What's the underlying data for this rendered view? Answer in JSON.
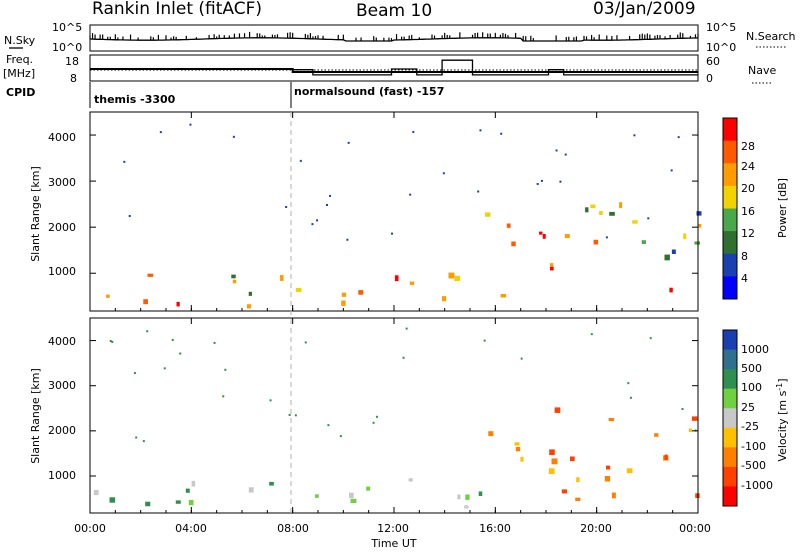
{
  "header": {
    "title": "Rankin Inlet (fitACF)",
    "beam": "Beam 10",
    "date": "03/Jan/2009"
  },
  "housekeeping": {
    "nsky_label": "N.Sky",
    "nsearch_label": "N.Search",
    "nsky_ticks": [
      "10^5",
      "10^0"
    ],
    "freq_label": "Freq.",
    "freq_unit": "[MHz]",
    "freq_ticks": [
      "18",
      "8"
    ],
    "nave_label": "Nave",
    "nave_ticks": [
      "60",
      "0"
    ],
    "cpid_label": "CPID",
    "cpid_segments": [
      {
        "label": "themis -3300",
        "start_hour": 0,
        "end_hour": 8
      },
      {
        "label": "normalsound (fast) -157",
        "start_hour": 8,
        "end_hour": 24
      }
    ],
    "nave_steps": [
      {
        "from": 0,
        "to": 8,
        "value": 30
      },
      {
        "from": 8,
        "to": 8.8,
        "value": 28
      },
      {
        "from": 8.8,
        "to": 10.1,
        "value": 14
      },
      {
        "from": 10.1,
        "to": 11.9,
        "value": 14
      },
      {
        "from": 11.9,
        "to": 12.9,
        "value": 30
      },
      {
        "from": 12.9,
        "to": 13.9,
        "value": 14
      },
      {
        "from": 13.9,
        "to": 15.1,
        "value": 54
      },
      {
        "from": 15.1,
        "to": 18.1,
        "value": 14
      },
      {
        "from": 18.1,
        "to": 18.7,
        "value": 28
      },
      {
        "from": 18.7,
        "to": 19.1,
        "value": 14
      },
      {
        "from": 19.1,
        "to": 24,
        "value": 14
      }
    ]
  },
  "chart_data": [
    {
      "type": "heatmap",
      "title": "Power",
      "ylabel": "Slant Range [km]",
      "xlabel": "Time UT",
      "x_range_hours": [
        0,
        24
      ],
      "ylim": [
        180,
        4500
      ],
      "y_ticks": [
        "1000",
        "2000",
        "3000",
        "4000"
      ],
      "x_ticks": [
        "00:00",
        "04:00",
        "08:00",
        "12:00",
        "16:00",
        "20:00",
        "00:00"
      ],
      "colorbar_label": "Power [dB]",
      "colorbar_ticks": [
        "4",
        "8",
        "12",
        "16",
        "20",
        "24",
        "28"
      ],
      "colorbar_colors": [
        "#0000ff",
        "#1a3fb0",
        "#2f6f2f",
        "#4aa84a",
        "#f2d200",
        "#ff9c00",
        "#ff5a00",
        "#ff0000"
      ],
      "regions": [
        {
          "t0": 0,
          "t1": 8,
          "r0": 250,
          "r1": 1050,
          "level": "mixed-high"
        },
        {
          "t0": 8,
          "t1": 12,
          "r0": 250,
          "r1": 900,
          "level": "mixed-high"
        },
        {
          "t0": 12,
          "t1": 17,
          "r0": 250,
          "r1": 1100,
          "level": "mixed-high"
        },
        {
          "t0": 15.5,
          "t1": 18.5,
          "r0": 1200,
          "r1": 2300,
          "level": "mixed-mid"
        },
        {
          "t0": 18,
          "t1": 24,
          "r0": 400,
          "r1": 2500,
          "level": "mixed-high"
        }
      ]
    },
    {
      "type": "heatmap",
      "title": "Velocity",
      "ylabel": "Slant Range [km]",
      "xlabel": "Time UT",
      "x_range_hours": [
        0,
        24
      ],
      "ylim": [
        180,
        4500
      ],
      "y_ticks": [
        "1000",
        "2000",
        "3000",
        "4000"
      ],
      "x_ticks": [
        "00:00",
        "04:00",
        "08:00",
        "12:00",
        "16:00",
        "20:00",
        "00:00"
      ],
      "colorbar_label": "Velocity [m s^-1]",
      "colorbar_ticks": [
        "1000",
        "500",
        "100",
        "25",
        "-25",
        "-100",
        "-500",
        "-1000"
      ],
      "colorbar_colors": [
        "#1a3fb0",
        "#2f6f8f",
        "#2f8f4f",
        "#6fd040",
        "#c8c8c8",
        "#ffc000",
        "#ff8000",
        "#ff4000",
        "#ff0000"
      ],
      "regions": [
        {
          "t0": 0,
          "t1": 8,
          "r0": 250,
          "r1": 1000,
          "level": "green-gray"
        },
        {
          "t0": 8,
          "t1": 12,
          "r0": 250,
          "r1": 900,
          "level": "green-gray"
        },
        {
          "t0": 12,
          "t1": 17,
          "r0": 250,
          "r1": 1000,
          "level": "orange-green"
        },
        {
          "t0": 15.5,
          "t1": 18.5,
          "r0": 1100,
          "r1": 2300,
          "level": "orange"
        },
        {
          "t0": 18,
          "t1": 24,
          "r0": 400,
          "r1": 2500,
          "level": "orange"
        }
      ]
    }
  ],
  "colors": {
    "vertical_marker": "#b0b0b0",
    "axis": "#000000"
  }
}
